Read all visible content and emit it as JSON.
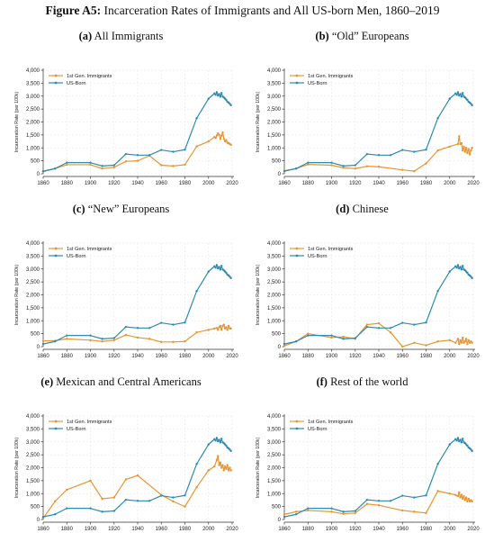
{
  "figure": {
    "label": "Figure A5:",
    "title": "Incarceration Rates of Immigrants and All US-born Men, 1860–2019"
  },
  "colors": {
    "immigrants": "#e8952f",
    "usborn": "#2b8cb3"
  },
  "chart_data": [
    {
      "type": "line",
      "panel_tag": "(a)",
      "panel_title": "All Immigrants",
      "ylabel": "Incarceration Rate (per 100k)",
      "xlim": [
        1860,
        2020
      ],
      "ylim": [
        0,
        4000
      ],
      "x_ticks": [
        1860,
        1880,
        1900,
        1920,
        1940,
        1960,
        1980,
        2000,
        2020
      ],
      "y_ticks": [
        0,
        500,
        1000,
        1500,
        2000,
        2500,
        3000,
        3500,
        4000
      ],
      "y_tick_labels": [
        "0",
        "500",
        "1,000",
        "1,500",
        "2,000",
        "2,500",
        "3,000",
        "3,500",
        "4,000"
      ],
      "legend_position": "top-left",
      "grid": true,
      "series": [
        {
          "name": "1st Gen. Immigrants",
          "color": "#e8952f",
          "x": [
            1860,
            1870,
            1880,
            1900,
            1910,
            1920,
            1930,
            1940,
            1950,
            1960,
            1970,
            1980,
            1990,
            2000,
            2005,
            2006,
            2007,
            2008,
            2009,
            2010,
            2011,
            2012,
            2013,
            2014,
            2015,
            2016,
            2017,
            2018,
            2019
          ],
          "y": [
            80,
            200,
            350,
            350,
            200,
            250,
            480,
            500,
            700,
            330,
            300,
            350,
            1060,
            1250,
            1420,
            1380,
            1480,
            1560,
            1500,
            1350,
            1470,
            1600,
            1350,
            1250,
            1300,
            1200,
            1180,
            1150,
            1120
          ]
        },
        {
          "name": "US-Born",
          "color": "#2b8cb3",
          "x": [
            1860,
            1870,
            1880,
            1900,
            1910,
            1920,
            1930,
            1940,
            1950,
            1960,
            1970,
            1980,
            1990,
            2000,
            2005,
            2006,
            2007,
            2008,
            2009,
            2010,
            2011,
            2012,
            2013,
            2014,
            2015,
            2016,
            2017,
            2018,
            2019
          ],
          "y": [
            100,
            200,
            430,
            430,
            300,
            330,
            760,
            720,
            720,
            920,
            850,
            930,
            2150,
            2900,
            3100,
            3050,
            3150,
            3020,
            3080,
            2980,
            3120,
            2980,
            2950,
            2900,
            2850,
            2780,
            2750,
            2700,
            2650
          ]
        }
      ]
    },
    {
      "type": "line",
      "panel_tag": "(b)",
      "panel_title": "“Old” Europeans",
      "ylabel": "Incarceration Rate (per 100k)",
      "xlim": [
        1860,
        2020
      ],
      "ylim": [
        0,
        4000
      ],
      "x_ticks": [
        1860,
        1880,
        1900,
        1920,
        1940,
        1960,
        1980,
        2000,
        2020
      ],
      "y_ticks": [
        0,
        500,
        1000,
        1500,
        2000,
        2500,
        3000,
        3500,
        4000
      ],
      "y_tick_labels": [
        "0",
        "500",
        "1,000",
        "1,500",
        "2,000",
        "2,500",
        "3,000",
        "3,500",
        "4,000"
      ],
      "legend_position": "top-left",
      "grid": true,
      "series": [
        {
          "name": "1st Gen. Immigrants",
          "color": "#e8952f",
          "x": [
            1860,
            1870,
            1880,
            1900,
            1910,
            1920,
            1930,
            1940,
            1960,
            1970,
            1980,
            1990,
            2000,
            2007,
            2008,
            2009,
            2010,
            2011,
            2012,
            2013,
            2014,
            2015,
            2016,
            2017,
            2018,
            2019
          ],
          "y": [
            120,
            200,
            360,
            330,
            230,
            200,
            290,
            270,
            150,
            100,
            400,
            900,
            1050,
            1150,
            1450,
            1150,
            1180,
            900,
            1050,
            850,
            1000,
            800,
            950,
            750,
            900,
            1000
          ]
        },
        {
          "name": "US-Born",
          "color": "#2b8cb3",
          "x": [
            1860,
            1870,
            1880,
            1900,
            1910,
            1920,
            1930,
            1940,
            1950,
            1960,
            1970,
            1980,
            1990,
            2000,
            2005,
            2006,
            2007,
            2008,
            2009,
            2010,
            2011,
            2012,
            2013,
            2014,
            2015,
            2016,
            2017,
            2018,
            2019
          ],
          "y": [
            100,
            200,
            430,
            430,
            300,
            330,
            760,
            720,
            720,
            920,
            850,
            930,
            2150,
            2900,
            3100,
            3050,
            3150,
            3020,
            3080,
            2980,
            3120,
            2980,
            2950,
            2900,
            2850,
            2780,
            2750,
            2700,
            2650
          ]
        }
      ]
    },
    {
      "type": "line",
      "panel_tag": "(c)",
      "panel_title": "“New” Europeans",
      "ylabel": "Incarceration Rate (per 100k)",
      "xlim": [
        1860,
        2020
      ],
      "ylim": [
        0,
        4000
      ],
      "x_ticks": [
        1860,
        1880,
        1900,
        1920,
        1940,
        1960,
        1980,
        2000,
        2020
      ],
      "y_ticks": [
        0,
        500,
        1000,
        1500,
        2000,
        2500,
        3000,
        3500,
        4000
      ],
      "y_tick_labels": [
        "0",
        "500",
        "1,000",
        "1,500",
        "2,000",
        "2,500",
        "3,000",
        "3,500",
        "4,000"
      ],
      "legend_position": "top-left",
      "grid": true,
      "series": [
        {
          "name": "1st Gen. Immigrants",
          "color": "#e8952f",
          "x": [
            1860,
            1870,
            1880,
            1900,
            1910,
            1920,
            1930,
            1940,
            1950,
            1960,
            1970,
            1980,
            1990,
            2000,
            2005,
            2007,
            2008,
            2009,
            2010,
            2011,
            2012,
            2013,
            2014,
            2015,
            2016,
            2017,
            2018,
            2019
          ],
          "y": [
            220,
            230,
            300,
            250,
            200,
            250,
            450,
            350,
            300,
            180,
            180,
            200,
            550,
            650,
            700,
            720,
            650,
            750,
            800,
            650,
            800,
            850,
            700,
            750,
            650,
            800,
            700,
            700
          ]
        },
        {
          "name": "US-Born",
          "color": "#2b8cb3",
          "x": [
            1860,
            1870,
            1880,
            1900,
            1910,
            1920,
            1930,
            1940,
            1950,
            1960,
            1970,
            1980,
            1990,
            2000,
            2005,
            2006,
            2007,
            2008,
            2009,
            2010,
            2011,
            2012,
            2013,
            2014,
            2015,
            2016,
            2017,
            2018,
            2019
          ],
          "y": [
            100,
            200,
            430,
            430,
            300,
            330,
            760,
            720,
            720,
            920,
            850,
            930,
            2150,
            2900,
            3100,
            3050,
            3150,
            3020,
            3080,
            2980,
            3120,
            2980,
            2950,
            2900,
            2850,
            2780,
            2750,
            2700,
            2650
          ]
        }
      ]
    },
    {
      "type": "line",
      "panel_tag": "(d)",
      "panel_title": "Chinese",
      "ylabel": "Incarceration Rate (per 100k)",
      "xlim": [
        1860,
        2020
      ],
      "ylim": [
        0,
        4000
      ],
      "x_ticks": [
        1860,
        1880,
        1900,
        1920,
        1940,
        1960,
        1980,
        2000,
        2020
      ],
      "y_ticks": [
        0,
        500,
        1000,
        1500,
        2000,
        2500,
        3000,
        3500,
        4000
      ],
      "y_tick_labels": [
        "0",
        "500",
        "1,000",
        "1,500",
        "2,000",
        "2,500",
        "3,000",
        "3,500",
        "4,000"
      ],
      "legend_position": "top-left",
      "grid": true,
      "series": [
        {
          "name": "1st Gen. Immigrants",
          "color": "#e8952f",
          "x": [
            1860,
            1870,
            1880,
            1900,
            1910,
            1920,
            1930,
            1940,
            1950,
            1960,
            1970,
            1980,
            1990,
            2000,
            2005,
            2007,
            2008,
            2009,
            2010,
            2011,
            2012,
            2013,
            2014,
            2015,
            2016,
            2017,
            2018,
            2019
          ],
          "y": [
            30,
            200,
            500,
            350,
            380,
            300,
            850,
            900,
            550,
            0,
            150,
            50,
            200,
            250,
            150,
            300,
            100,
            250,
            150,
            350,
            150,
            200,
            300,
            100,
            250,
            150,
            200,
            150
          ]
        },
        {
          "name": "US-Born",
          "color": "#2b8cb3",
          "x": [
            1860,
            1870,
            1880,
            1900,
            1910,
            1920,
            1930,
            1940,
            1950,
            1960,
            1970,
            1980,
            1990,
            2000,
            2005,
            2006,
            2007,
            2008,
            2009,
            2010,
            2011,
            2012,
            2013,
            2014,
            2015,
            2016,
            2017,
            2018,
            2019
          ],
          "y": [
            100,
            200,
            430,
            430,
            300,
            330,
            760,
            720,
            720,
            920,
            850,
            930,
            2150,
            2900,
            3100,
            3050,
            3150,
            3020,
            3080,
            2980,
            3120,
            2980,
            2950,
            2900,
            2850,
            2780,
            2750,
            2700,
            2650
          ]
        }
      ]
    },
    {
      "type": "line",
      "panel_tag": "(e)",
      "panel_title": "Mexican and Central Americans",
      "ylabel": "Incarceration Rate (per 100k)",
      "xlim": [
        1860,
        2020
      ],
      "ylim": [
        0,
        4000
      ],
      "x_ticks": [
        1860,
        1880,
        1900,
        1920,
        1940,
        1960,
        1980,
        2000,
        2020
      ],
      "y_ticks": [
        0,
        500,
        1000,
        1500,
        2000,
        2500,
        3000,
        3500,
        4000
      ],
      "y_tick_labels": [
        "0",
        "500",
        "1,000",
        "1,500",
        "2,000",
        "2,500",
        "3,000",
        "3,500",
        "4,000"
      ],
      "legend_position": "top-left",
      "grid": true,
      "series": [
        {
          "name": "1st Gen. Immigrants",
          "color": "#e8952f",
          "x": [
            1860,
            1870,
            1880,
            1900,
            1910,
            1920,
            1930,
            1940,
            1960,
            1970,
            1980,
            1990,
            2000,
            2005,
            2007,
            2008,
            2009,
            2010,
            2011,
            2012,
            2013,
            2014,
            2015,
            2016,
            2017,
            2018,
            2019
          ],
          "y": [
            50,
            700,
            1150,
            1500,
            800,
            850,
            1550,
            1700,
            950,
            700,
            500,
            1250,
            1900,
            2050,
            2300,
            2450,
            2100,
            2200,
            2000,
            2100,
            1900,
            2050,
            1950,
            2100,
            1900,
            2000,
            1900
          ]
        },
        {
          "name": "US-Born",
          "color": "#2b8cb3",
          "x": [
            1860,
            1870,
            1880,
            1900,
            1910,
            1920,
            1930,
            1940,
            1950,
            1960,
            1970,
            1980,
            1990,
            2000,
            2005,
            2006,
            2007,
            2008,
            2009,
            2010,
            2011,
            2012,
            2013,
            2014,
            2015,
            2016,
            2017,
            2018,
            2019
          ],
          "y": [
            100,
            200,
            430,
            430,
            300,
            330,
            760,
            720,
            720,
            920,
            850,
            930,
            2150,
            2900,
            3100,
            3050,
            3150,
            3020,
            3080,
            2980,
            3120,
            2980,
            2950,
            2900,
            2850,
            2780,
            2750,
            2700,
            2650
          ]
        }
      ]
    },
    {
      "type": "line",
      "panel_tag": "(f)",
      "panel_title": "Rest of the world",
      "ylabel": "Incarceration Rate (per 100k)",
      "xlim": [
        1860,
        2020
      ],
      "ylim": [
        0,
        4000
      ],
      "x_ticks": [
        1860,
        1880,
        1900,
        1920,
        1940,
        1960,
        1980,
        2000,
        2020
      ],
      "y_ticks": [
        0,
        500,
        1000,
        1500,
        2000,
        2500,
        3000,
        3500,
        4000
      ],
      "y_tick_labels": [
        "0",
        "500",
        "1,000",
        "1,500",
        "2,000",
        "2,500",
        "3,000",
        "3,500",
        "4,000"
      ],
      "legend_position": "top-left",
      "grid": true,
      "series": [
        {
          "name": "1st Gen. Immigrants",
          "color": "#e8952f",
          "x": [
            1860,
            1870,
            1880,
            1900,
            1910,
            1920,
            1930,
            1940,
            1960,
            1970,
            1980,
            1990,
            2000,
            2005,
            2007,
            2008,
            2009,
            2010,
            2011,
            2012,
            2013,
            2014,
            2015,
            2016,
            2017,
            2018,
            2019
          ],
          "y": [
            200,
            300,
            350,
            300,
            220,
            250,
            600,
            550,
            350,
            300,
            250,
            1100,
            1000,
            950,
            900,
            1050,
            850,
            950,
            800,
            900,
            750,
            850,
            700,
            800,
            700,
            750,
            700
          ]
        },
        {
          "name": "US-Born",
          "color": "#2b8cb3",
          "x": [
            1860,
            1870,
            1880,
            1900,
            1910,
            1920,
            1930,
            1940,
            1950,
            1960,
            1970,
            1980,
            1990,
            2000,
            2005,
            2006,
            2007,
            2008,
            2009,
            2010,
            2011,
            2012,
            2013,
            2014,
            2015,
            2016,
            2017,
            2018,
            2019
          ],
          "y": [
            100,
            200,
            430,
            430,
            300,
            330,
            760,
            720,
            720,
            920,
            850,
            930,
            2150,
            2900,
            3100,
            3050,
            3150,
            3020,
            3080,
            2980,
            3120,
            2980,
            2950,
            2900,
            2850,
            2780,
            2750,
            2700,
            2650
          ]
        }
      ]
    }
  ]
}
